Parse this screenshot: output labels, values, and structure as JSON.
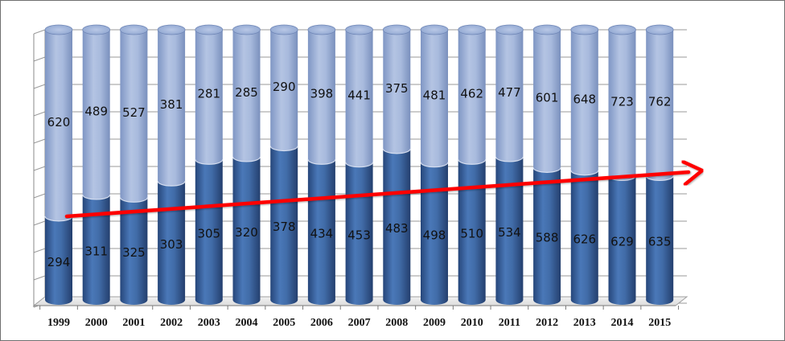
{
  "chart_data": {
    "type": "bar",
    "stacked": true,
    "style": "3d-cylinder",
    "categories": [
      "1999",
      "2000",
      "2001",
      "2002",
      "2003",
      "2004",
      "2005",
      "2006",
      "2007",
      "2008",
      "2009",
      "2010",
      "2011",
      "2012",
      "2013",
      "2014",
      "2015"
    ],
    "series": [
      {
        "values": [
          294,
          311,
          325,
          303,
          305,
          320,
          378,
          434,
          453,
          483,
          498,
          510,
          534,
          588,
          626,
          629,
          635
        ],
        "color": "#3f6aa8"
      },
      {
        "values": [
          620,
          489,
          527,
          381,
          281,
          285,
          290,
          398,
          441,
          375,
          481,
          462,
          477,
          601,
          648,
          723,
          762
        ],
        "color": "#9fb3d9"
      }
    ],
    "bottom_fraction": [
      0.31,
      0.39,
      0.38,
      0.44,
      0.52,
      0.53,
      0.57,
      0.52,
      0.51,
      0.56,
      0.51,
      0.52,
      0.53,
      0.49,
      0.48,
      0.46,
      0.46
    ],
    "trend_arrow": {
      "color": "#ff0000",
      "direction": "up"
    },
    "grid": true,
    "legend": "none",
    "title": "",
    "xlabel": "",
    "ylabel": ""
  }
}
